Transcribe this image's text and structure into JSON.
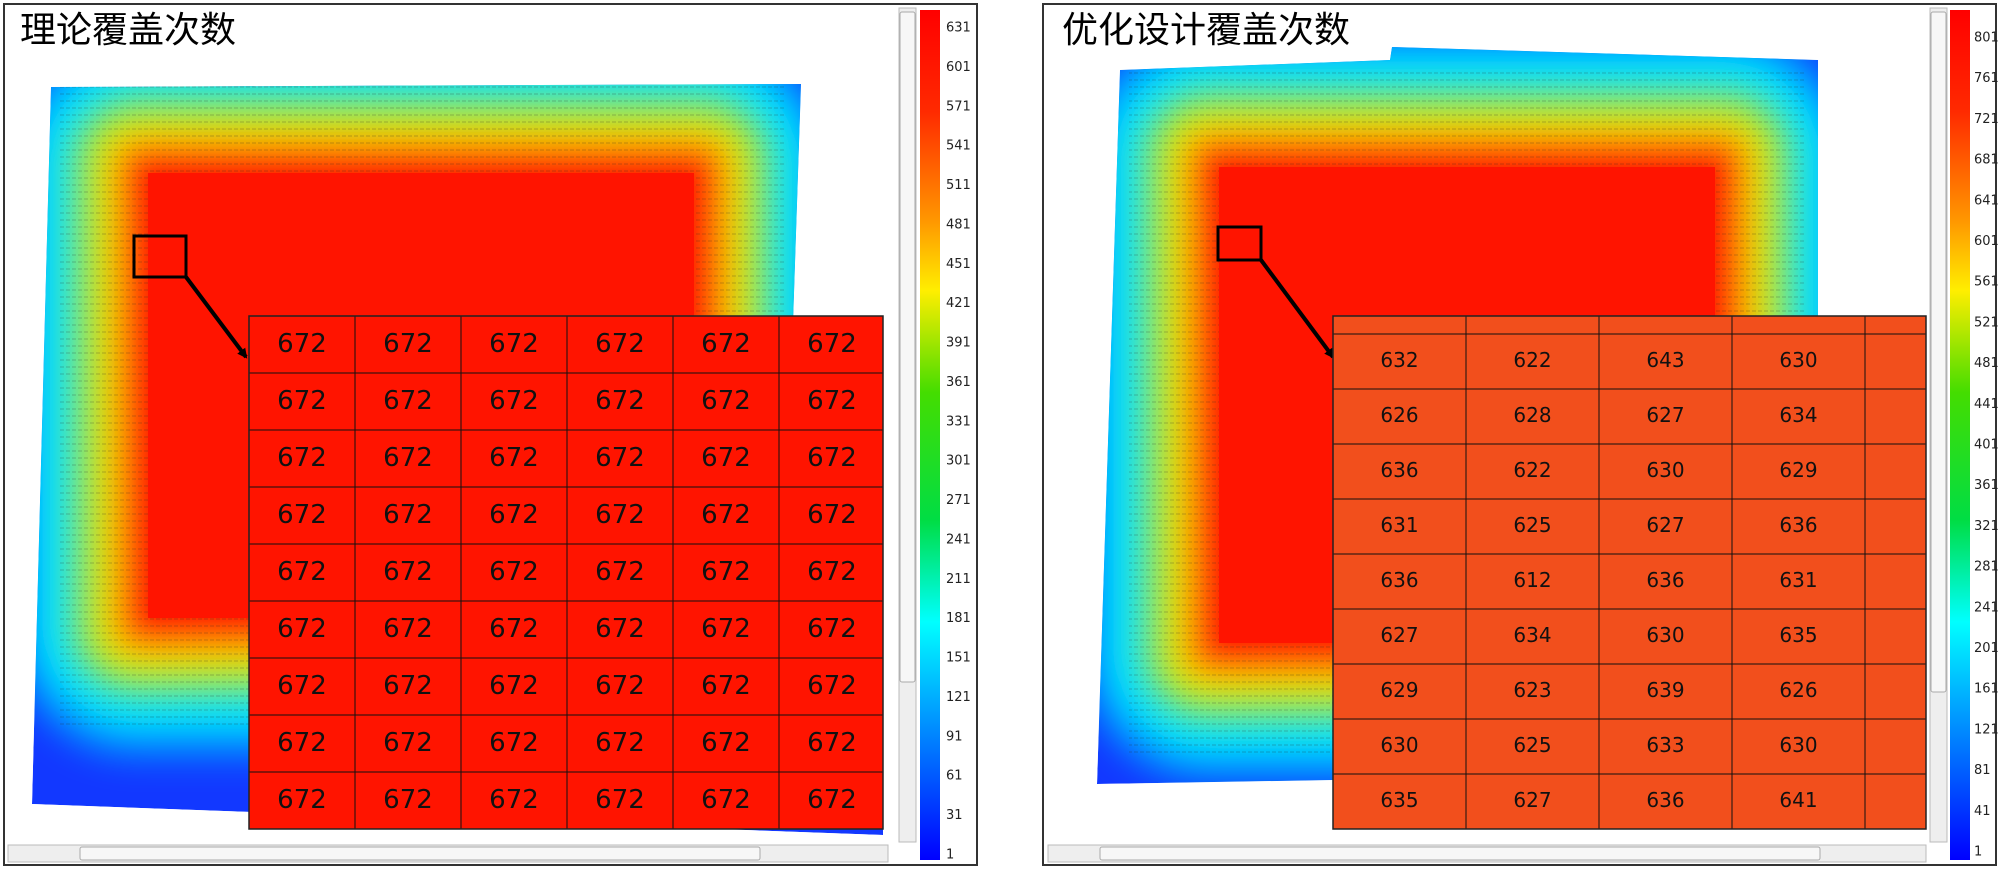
{
  "panels": [
    {
      "title": "理论覆盖次数",
      "colorbar_ticks": [
        "631",
        "601",
        "571",
        "541",
        "511",
        "481",
        "451",
        "421",
        "391",
        "361",
        "331",
        "301",
        "271",
        "241",
        "211",
        "181",
        "151",
        "121",
        "91",
        "61",
        "31",
        "1"
      ],
      "zoom_cells": [
        [
          "672",
          "672",
          "672",
          "672",
          "672",
          "672"
        ],
        [
          "672",
          "672",
          "672",
          "672",
          "672",
          "672"
        ],
        [
          "672",
          "672",
          "672",
          "672",
          "672",
          "672"
        ],
        [
          "672",
          "672",
          "672",
          "672",
          "672",
          "672"
        ],
        [
          "672",
          "672",
          "672",
          "672",
          "672",
          "672"
        ],
        [
          "672",
          "672",
          "672",
          "672",
          "672",
          "672"
        ],
        [
          "672",
          "672",
          "672",
          "672",
          "672",
          "672"
        ],
        [
          "672",
          "672",
          "672",
          "672",
          "672",
          "672"
        ],
        [
          "672",
          "672",
          "672",
          "672",
          "672",
          "672"
        ]
      ]
    },
    {
      "title": "优化设计覆盖次数",
      "colorbar_ticks": [
        "801",
        "761",
        "721",
        "681",
        "641",
        "601",
        "561",
        "521",
        "481",
        "441",
        "401",
        "361",
        "321",
        "281",
        "241",
        "201",
        "161",
        "121",
        "81",
        "41",
        "1"
      ],
      "zoom_cells": [
        [
          "632",
          "622",
          "643",
          "630"
        ],
        [
          "626",
          "628",
          "627",
          "634"
        ],
        [
          "636",
          "622",
          "630",
          "629"
        ],
        [
          "631",
          "625",
          "627",
          "636"
        ],
        [
          "636",
          "612",
          "636",
          "631"
        ],
        [
          "627",
          "634",
          "630",
          "635"
        ],
        [
          "629",
          "623",
          "639",
          "626"
        ],
        [
          "630",
          "625",
          "633",
          "630"
        ],
        [
          "635",
          "627",
          "636",
          "641"
        ]
      ]
    }
  ]
}
